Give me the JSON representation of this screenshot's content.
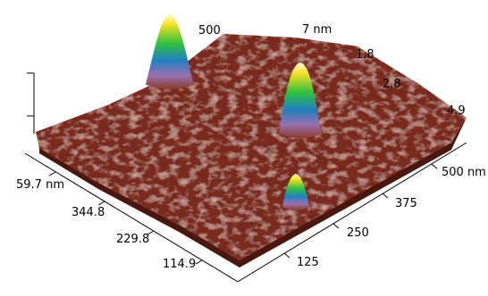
{
  "axis_labels": {
    "left": [
      "59.7 nm",
      "344.8",
      "229.8",
      "114.9"
    ],
    "right": [
      "500 nm",
      "375",
      "250",
      "125"
    ],
    "back": [
      "500",
      "7 nm",
      "1.8",
      "2.8",
      "4.9"
    ]
  }
}
